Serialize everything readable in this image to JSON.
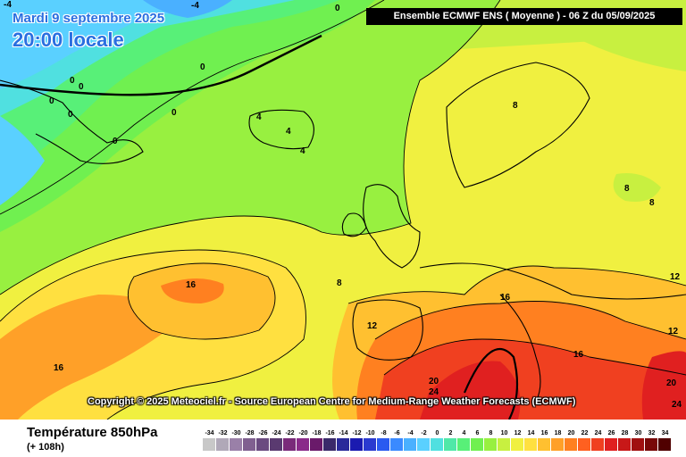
{
  "date_line_1": "Mardi 9 septembre 2025",
  "date_line_2": "20:00 locale",
  "model_run": "Ensemble ECMWF ENS  ( Moyenne )  -  06 Z du 05/09/2025",
  "copyright": "Copyright © 2025 Meteociel.fr - Source European Centre for Medium-Range Weather Forecasts (ECMWF)",
  "parameter": "Température 850hPa",
  "lead_time": "(+ 108h)",
  "scale": {
    "values": [
      -34,
      -32,
      -30,
      -28,
      -26,
      -24,
      -22,
      -20,
      -18,
      -16,
      -14,
      -12,
      -10,
      -8,
      -6,
      -4,
      -2,
      0,
      2,
      4,
      6,
      8,
      10,
      12,
      14,
      16,
      18,
      20,
      22,
      24,
      26,
      28,
      30,
      32,
      34
    ],
    "colors": [
      "#c8c8c8",
      "#b0a8b8",
      "#9a80a8",
      "#806090",
      "#6a4a80",
      "#5a3a70",
      "#7a2a7a",
      "#8a2a8a",
      "#6a1a6a",
      "#3a2a6a",
      "#2a2a9a",
      "#1a1ab0",
      "#2a3ad0",
      "#2a5af0",
      "#3a8aff",
      "#4ab0ff",
      "#5ad0ff",
      "#50e0e0",
      "#50e8a8",
      "#58f078",
      "#70f050",
      "#98f040",
      "#c8f040",
      "#f0f040",
      "#ffe040",
      "#ffc030",
      "#ffa028",
      "#ff8020",
      "#ff6020",
      "#f04020",
      "#e02020",
      "#c81818",
      "#a01010",
      "#780808",
      "#500000"
    ]
  },
  "contour_labels": [
    {
      "text": "-4"
    },
    {
      "text": "-4"
    },
    {
      "text": "0"
    },
    {
      "text": "0"
    },
    {
      "text": "0"
    },
    {
      "text": "0"
    },
    {
      "text": "0"
    },
    {
      "text": "0"
    },
    {
      "text": "0"
    },
    {
      "text": "0"
    },
    {
      "text": "4"
    },
    {
      "text": "4"
    },
    {
      "text": "4"
    },
    {
      "text": "8"
    },
    {
      "text": "8"
    },
    {
      "text": "8"
    },
    {
      "text": "8"
    },
    {
      "text": "12"
    },
    {
      "text": "12"
    },
    {
      "text": "12"
    },
    {
      "text": "16"
    },
    {
      "text": "16"
    },
    {
      "text": "16"
    },
    {
      "text": "16"
    },
    {
      "text": "20"
    },
    {
      "text": "20"
    },
    {
      "text": "24"
    },
    {
      "text": "24"
    }
  ]
}
